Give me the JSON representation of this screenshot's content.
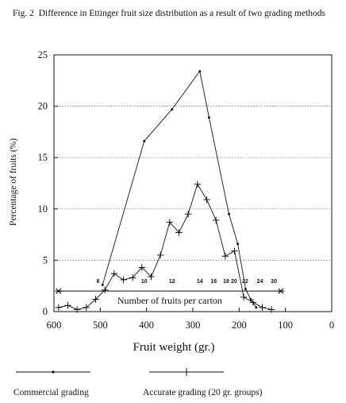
{
  "caption": {
    "figure_number": "Fig. 2",
    "text": "Difference in Ettinger fruit size distribution as a result of two grading methods"
  },
  "chart_data": {
    "type": "line",
    "title": "Difference in Ettinger fruit size distribution as a result of two grading methods",
    "xlabel": "Fruit weight (gr.)",
    "ylabel": "Percentage of fruits (%)",
    "xlim": [
      600,
      0
    ],
    "ylim": [
      0,
      25
    ],
    "x_ticks": [
      600,
      500,
      400,
      300,
      200,
      100,
      0
    ],
    "y_ticks": [
      0,
      5,
      10,
      15,
      20,
      25
    ],
    "grid": "horizontal dotted",
    "legend_position": "bottom",
    "series": [
      {
        "name": "Commercial grading",
        "marker": "dot",
        "points": [
          [
            495,
            2.6
          ],
          [
            405,
            16.6
          ],
          [
            345,
            19.7
          ],
          [
            285,
            23.4
          ],
          [
            265,
            18.9
          ],
          [
            222,
            9.5
          ],
          [
            203,
            6.6
          ],
          [
            186,
            2.2
          ],
          [
            175,
            1.2
          ],
          [
            163,
            0.4
          ]
        ]
      },
      {
        "name": "Accurate grading (20 gr. groups)",
        "marker": "plus",
        "points": [
          [
            590,
            0.4
          ],
          [
            570,
            0.6
          ],
          [
            550,
            0.2
          ],
          [
            530,
            0.4
          ],
          [
            510,
            1.2
          ],
          [
            490,
            2.1
          ],
          [
            470,
            3.7
          ],
          [
            450,
            3.1
          ],
          [
            430,
            3.3
          ],
          [
            410,
            4.3
          ],
          [
            390,
            3.4
          ],
          [
            370,
            5.5
          ],
          [
            350,
            8.7
          ],
          [
            330,
            7.7
          ],
          [
            310,
            9.5
          ],
          [
            290,
            12.4
          ],
          [
            270,
            10.9
          ],
          [
            250,
            8.9
          ],
          [
            230,
            5.4
          ],
          [
            210,
            5.9
          ],
          [
            190,
            1.4
          ],
          [
            170,
            0.9
          ],
          [
            150,
            0.4
          ],
          [
            130,
            0.2
          ]
        ]
      }
    ],
    "carton_annotation": {
      "label": "Number of fruits per carton",
      "y": 2.0,
      "x_start": 590,
      "x_end": 110,
      "counts": [
        {
          "text": "8",
          "x": 505,
          "y": 2.8
        },
        {
          "text": "10",
          "x": 405,
          "y": 2.8
        },
        {
          "text": "12",
          "x": 345,
          "y": 2.8
        },
        {
          "text": "14",
          "x": 285,
          "y": 2.8
        },
        {
          "text": "16",
          "x": 255,
          "y": 2.8
        },
        {
          "text": "18",
          "x": 228,
          "y": 2.8
        },
        {
          "text": "20",
          "x": 211,
          "y": 2.8
        },
        {
          "text": "22",
          "x": 187,
          "y": 2.8
        },
        {
          "text": "24",
          "x": 155,
          "y": 2.8
        },
        {
          "text": "30",
          "x": 125,
          "y": 2.8
        }
      ]
    }
  }
}
